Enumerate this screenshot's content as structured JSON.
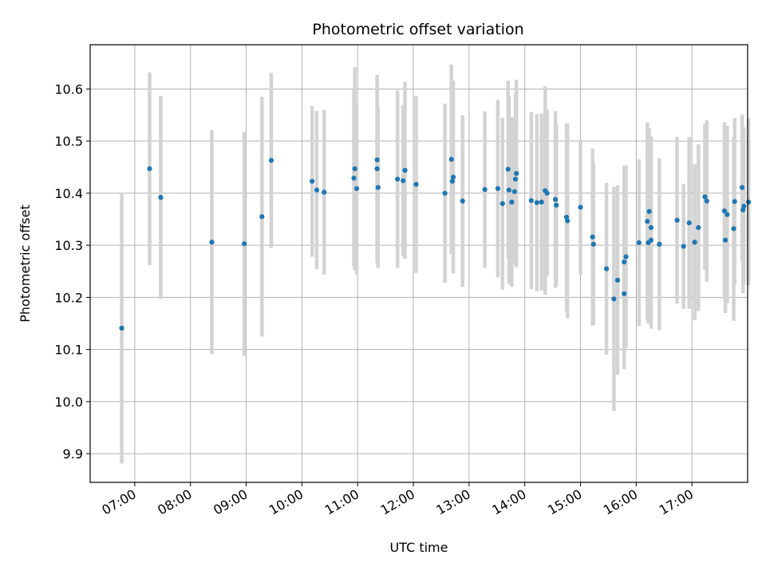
{
  "chart_data": {
    "type": "scatter",
    "title": "Photometric offset variation",
    "xlabel": "UTC time",
    "ylabel": "Photometric offset",
    "xlim": [
      "06:12",
      "18:00"
    ],
    "ylim": [
      9.845,
      10.685
    ],
    "grid": true,
    "x_ticks": [
      "07:00",
      "08:00",
      "09:00",
      "10:00",
      "11:00",
      "12:00",
      "13:00",
      "14:00",
      "15:00",
      "16:00",
      "17:00"
    ],
    "y_ticks": [
      9.9,
      10.0,
      10.1,
      10.2,
      10.3,
      10.4,
      10.5,
      10.6
    ],
    "y_tick_labels": [
      "9.9",
      "10.0",
      "10.1",
      "10.2",
      "10.3",
      "10.4",
      "10.5",
      "10.6"
    ],
    "colors": {
      "point": "#1f77b4",
      "errorbar": "#d3d3d3",
      "grid": "#b0b0b0"
    },
    "series": [
      {
        "x": [
          "06:46",
          "07:16",
          "07:28",
          "08:23",
          "08:58",
          "09:17",
          "09:27",
          "10:11",
          "10:16",
          "10:24",
          "10:56",
          "10:57",
          "10:59",
          "11:21",
          "11:21",
          "11:22",
          "11:43",
          "11:49",
          "11:51",
          "12:03",
          "12:34",
          "12:41",
          "12:42",
          "12:43",
          "12:53",
          "13:17",
          "13:31",
          "13:36",
          "13:42",
          "13:43",
          "13:46",
          "13:49",
          "13:50",
          "13:51",
          "14:07",
          "14:13",
          "14:18",
          "14:22",
          "14:24",
          "14:33",
          "14:34",
          "14:45",
          "14:46",
          "15:00",
          "15:13",
          "15:14",
          "15:28",
          "15:36",
          "15:40",
          "15:47",
          "15:47",
          "15:49",
          "16:03",
          "16:12",
          "16:13",
          "16:14",
          "16:16",
          "16:16",
          "16:25",
          "16:44",
          "16:51",
          "16:57",
          "17:03",
          "17:07",
          "17:14",
          "17:16",
          "17:35",
          "17:36",
          "17:38",
          "17:45",
          "17:46",
          "17:54",
          "17:55",
          "17:56",
          "18:01"
        ],
        "y": [
          10.141,
          10.447,
          10.392,
          10.306,
          10.303,
          10.355,
          10.463,
          10.423,
          10.406,
          10.402,
          10.429,
          10.447,
          10.409,
          10.464,
          10.447,
          10.411,
          10.427,
          10.424,
          10.444,
          10.417,
          10.4,
          10.465,
          10.423,
          10.431,
          10.385,
          10.407,
          10.409,
          10.38,
          10.446,
          10.406,
          10.383,
          10.403,
          10.427,
          10.438,
          10.386,
          10.382,
          10.383,
          10.405,
          10.4,
          10.388,
          10.377,
          10.354,
          10.347,
          10.373,
          10.316,
          10.302,
          10.255,
          10.197,
          10.233,
          10.207,
          10.268,
          10.278,
          10.305,
          10.346,
          10.305,
          10.365,
          10.334,
          10.31,
          10.302,
          10.348,
          10.298,
          10.343,
          10.306,
          10.334,
          10.393,
          10.385,
          10.366,
          10.31,
          10.359,
          10.332,
          10.384,
          10.411,
          10.368,
          10.375,
          10.383
        ],
        "yerr": [
          0.26,
          0.185,
          0.195,
          0.215,
          0.215,
          0.23,
          0.168,
          0.145,
          0.152,
          0.158,
          0.17,
          0.195,
          0.165,
          0.16,
          0.18,
          0.155,
          0.17,
          0.145,
          0.17,
          0.17,
          0.172,
          0.182,
          0.14,
          0.185,
          0.165,
          0.15,
          0.17,
          0.165,
          0.17,
          0.18,
          0.163,
          0.13,
          0.165,
          0.18,
          0.17,
          0.17,
          0.17,
          0.2,
          0.16,
          0.17,
          0.155,
          0.18,
          0.187,
          0.13,
          0.17,
          0.155,
          0.165,
          0.215,
          0.182,
          0.145,
          0.185,
          0.175,
          0.16,
          0.19,
          0.155,
          0.16,
          0.175,
          0.17,
          0.165,
          0.16,
          0.12,
          0.165,
          0.15,
          0.16,
          0.14,
          0.155,
          0.17,
          0.14,
          0.17,
          0.177,
          0.16,
          0.14,
          0.16,
          0.15,
          0.16
        ]
      }
    ]
  }
}
